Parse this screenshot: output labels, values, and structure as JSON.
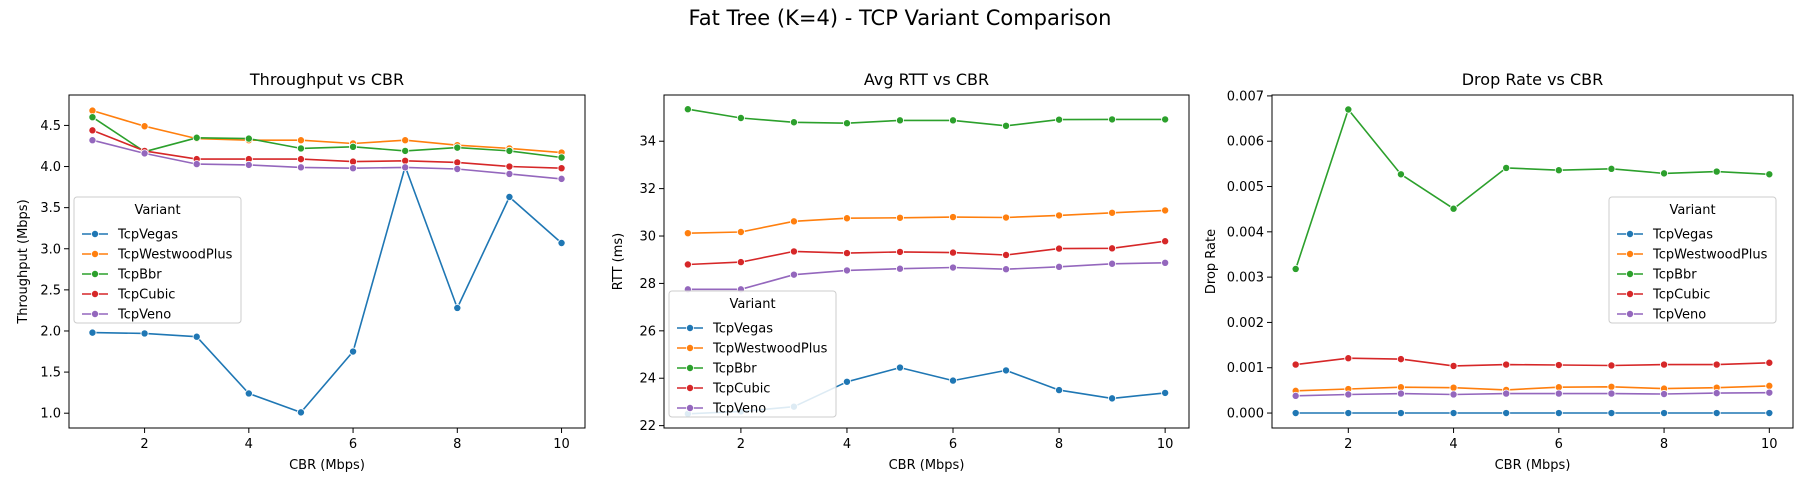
{
  "figure": {
    "title": "Fat Tree (K=4) - TCP Variant Comparison"
  },
  "colors": {
    "TcpVegas": "#1f77b4",
    "TcpWestwoodPlus": "#ff7f0e",
    "TcpBbr": "#2ca02c",
    "TcpCubic": "#d62728",
    "TcpVeno": "#9467bd"
  },
  "chart_data": [
    {
      "type": "line",
      "title": "Throughput vs CBR",
      "xlabel": "CBR (Mbps)",
      "ylabel": "Throughput (Mbps)",
      "x": [
        1,
        2,
        3,
        4,
        5,
        6,
        7,
        8,
        9,
        10
      ],
      "xticks": [
        2,
        4,
        6,
        8,
        10
      ],
      "xticklabels": [
        "2",
        "4",
        "6",
        "8",
        "10"
      ],
      "xlim": [
        0.55,
        10.45
      ],
      "yticks": [
        1.0,
        1.5,
        2.0,
        2.5,
        3.0,
        3.5,
        4.0,
        4.5
      ],
      "yticklabels": [
        "1.0",
        "1.5",
        "2.0",
        "2.5",
        "3.0",
        "3.5",
        "4.0",
        "4.5"
      ],
      "ylim": [
        0.82,
        4.87
      ],
      "grid": false,
      "legend": {
        "title": "Variant",
        "placement": "center-left"
      },
      "series": [
        {
          "name": "TcpVegas",
          "values": [
            1.98,
            1.97,
            1.93,
            1.24,
            1.01,
            1.75,
            4.0,
            2.28,
            3.63,
            3.07
          ]
        },
        {
          "name": "TcpWestwoodPlus",
          "values": [
            4.68,
            4.49,
            4.34,
            4.32,
            4.32,
            4.28,
            4.32,
            4.26,
            4.22,
            4.17
          ]
        },
        {
          "name": "TcpBbr",
          "values": [
            4.6,
            4.18,
            4.35,
            4.34,
            4.22,
            4.24,
            4.19,
            4.23,
            4.19,
            4.11
          ]
        },
        {
          "name": "TcpCubic",
          "values": [
            4.44,
            4.19,
            4.09,
            4.09,
            4.09,
            4.06,
            4.07,
            4.05,
            4.0,
            3.98
          ]
        },
        {
          "name": "TcpVeno",
          "values": [
            4.32,
            4.16,
            4.03,
            4.02,
            3.99,
            3.98,
            3.99,
            3.97,
            3.91,
            3.85
          ]
        }
      ]
    },
    {
      "type": "line",
      "title": "Avg RTT vs CBR",
      "xlabel": "CBR (Mbps)",
      "ylabel": "RTT (ms)",
      "x": [
        1,
        2,
        3,
        4,
        5,
        6,
        7,
        8,
        9,
        10
      ],
      "xticks": [
        2,
        4,
        6,
        8,
        10
      ],
      "xticklabels": [
        "2",
        "4",
        "6",
        "8",
        "10"
      ],
      "xlim": [
        0.55,
        10.45
      ],
      "yticks": [
        22,
        24,
        26,
        28,
        30,
        32,
        34
      ],
      "yticklabels": [
        "22",
        "24",
        "26",
        "28",
        "30",
        "32",
        "34"
      ],
      "ylim": [
        21.9,
        35.95
      ],
      "grid": false,
      "legend": {
        "title": "Variant",
        "placement": "lower-left"
      },
      "series": [
        {
          "name": "TcpVegas",
          "values": [
            22.5,
            22.6,
            22.8,
            23.85,
            24.45,
            23.9,
            24.33,
            23.5,
            23.15,
            23.38
          ]
        },
        {
          "name": "TcpWestwoodPlus",
          "values": [
            30.12,
            30.17,
            30.62,
            30.75,
            30.77,
            30.8,
            30.78,
            30.87,
            30.98,
            31.08
          ]
        },
        {
          "name": "TcpBbr",
          "values": [
            35.35,
            34.98,
            34.8,
            34.76,
            34.88,
            34.88,
            34.65,
            34.91,
            34.92,
            34.92
          ]
        },
        {
          "name": "TcpCubic",
          "values": [
            28.8,
            28.9,
            29.35,
            29.28,
            29.33,
            29.3,
            29.2,
            29.47,
            29.48,
            29.78
          ]
        },
        {
          "name": "TcpVeno",
          "values": [
            27.75,
            27.75,
            28.37,
            28.55,
            28.62,
            28.67,
            28.6,
            28.7,
            28.83,
            28.87
          ]
        }
      ]
    },
    {
      "type": "line",
      "title": "Drop Rate vs CBR",
      "xlabel": "CBR (Mbps)",
      "ylabel": "Drop Rate",
      "x": [
        1,
        2,
        3,
        4,
        5,
        6,
        7,
        8,
        9,
        10
      ],
      "xticks": [
        2,
        4,
        6,
        8,
        10
      ],
      "xticklabels": [
        "2",
        "4",
        "6",
        "8",
        "10"
      ],
      "xlim": [
        0.55,
        10.45
      ],
      "yticks": [
        0.0,
        0.001,
        0.002,
        0.003,
        0.004,
        0.005,
        0.006,
        0.007
      ],
      "yticklabels": [
        "0.000",
        "0.001",
        "0.002",
        "0.003",
        "0.004",
        "0.005",
        "0.006",
        "0.007"
      ],
      "ylim": [
        -0.00033,
        0.00702
      ],
      "grid": false,
      "legend": {
        "title": "Variant",
        "placement": "center-right"
      },
      "series": [
        {
          "name": "TcpVegas",
          "values": [
            0.0,
            0.0,
            0.0,
            0.0,
            0.0,
            0.0,
            0.0,
            0.0,
            0.0,
            0.0
          ]
        },
        {
          "name": "TcpWestwoodPlus",
          "values": [
            0.00049,
            0.00053,
            0.00057,
            0.00056,
            0.00051,
            0.00057,
            0.00058,
            0.00054,
            0.00056,
            0.0006
          ]
        },
        {
          "name": "TcpBbr",
          "values": [
            0.00318,
            0.0067,
            0.00527,
            0.00451,
            0.00541,
            0.00536,
            0.00539,
            0.00529,
            0.00533,
            0.00527
          ]
        },
        {
          "name": "TcpCubic",
          "values": [
            0.00107,
            0.00121,
            0.00119,
            0.00104,
            0.00107,
            0.00106,
            0.00105,
            0.00107,
            0.00107,
            0.00111
          ]
        },
        {
          "name": "TcpVeno",
          "values": [
            0.00038,
            0.00041,
            0.00043,
            0.00041,
            0.00043,
            0.00043,
            0.00043,
            0.00042,
            0.00044,
            0.00045
          ]
        }
      ]
    }
  ]
}
